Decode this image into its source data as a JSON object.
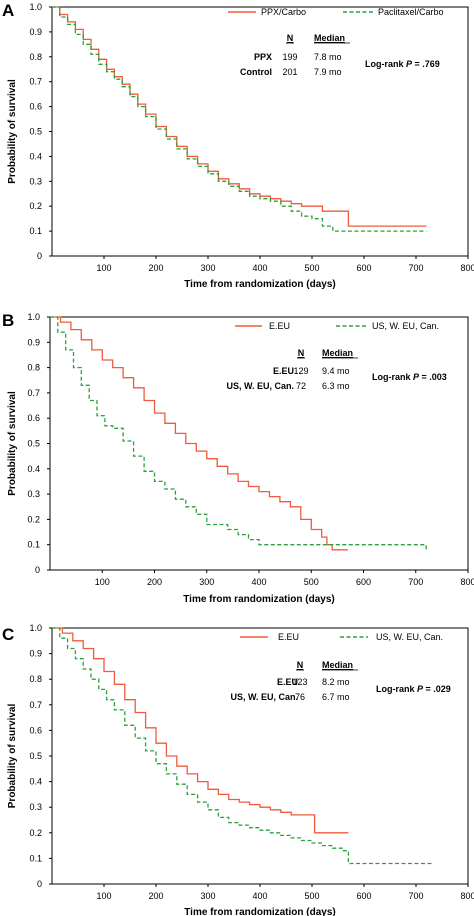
{
  "colors": {
    "orange": "#f15a3c",
    "green": "#2aa13a",
    "axis": "#000000"
  },
  "chart_data": [
    {
      "type": "line",
      "panel_label": "A",
      "xlabel": "Time from randomization (days)",
      "ylabel": "Probability of survival",
      "xlim": [
        0,
        800
      ],
      "ylim": [
        0,
        1.0
      ],
      "x_ticks": [
        "100",
        "200",
        "300",
        "400",
        "500",
        "600",
        "700",
        "800"
      ],
      "y_ticks": [
        "0",
        "0.1",
        "0.2",
        "0.3",
        "0.4",
        "0.5",
        "0.6",
        "0.7",
        "0.8",
        "0.9",
        "1.0"
      ],
      "annotation": "Log-rank P = .769",
      "table": {
        "header_n": "N",
        "header_median": "Median",
        "rows": [
          {
            "label": "PPX",
            "n": "199",
            "median": "7.8 mo"
          },
          {
            "label": "Control",
            "n": "201",
            "median": "7.9 mo"
          }
        ]
      },
      "series": [
        {
          "name": "PPX/Carbo",
          "style": "solid",
          "color": "#f15a3c",
          "x": [
            0,
            15,
            30,
            45,
            60,
            75,
            90,
            105,
            120,
            135,
            150,
            165,
            180,
            200,
            220,
            240,
            260,
            280,
            300,
            320,
            340,
            360,
            380,
            400,
            420,
            440,
            460,
            480,
            500,
            520,
            540,
            565,
            570,
            720
          ],
          "y": [
            1.0,
            0.97,
            0.94,
            0.91,
            0.87,
            0.83,
            0.79,
            0.75,
            0.72,
            0.69,
            0.65,
            0.61,
            0.57,
            0.52,
            0.48,
            0.44,
            0.4,
            0.37,
            0.34,
            0.31,
            0.29,
            0.27,
            0.25,
            0.24,
            0.23,
            0.22,
            0.21,
            0.2,
            0.2,
            0.18,
            0.18,
            0.18,
            0.12,
            0.12
          ]
        },
        {
          "name": "Paclitaxel/Carbo",
          "style": "dashed",
          "color": "#2aa13a",
          "x": [
            0,
            15,
            30,
            45,
            60,
            75,
            90,
            105,
            120,
            135,
            150,
            165,
            180,
            200,
            220,
            240,
            260,
            280,
            300,
            320,
            340,
            360,
            380,
            400,
            420,
            440,
            460,
            480,
            500,
            520,
            540,
            720
          ],
          "y": [
            1.0,
            0.96,
            0.93,
            0.89,
            0.85,
            0.81,
            0.77,
            0.74,
            0.71,
            0.68,
            0.64,
            0.6,
            0.56,
            0.51,
            0.47,
            0.43,
            0.39,
            0.36,
            0.33,
            0.3,
            0.28,
            0.26,
            0.24,
            0.23,
            0.22,
            0.2,
            0.18,
            0.16,
            0.15,
            0.12,
            0.1,
            0.1
          ]
        }
      ]
    },
    {
      "type": "line",
      "panel_label": "B",
      "xlabel": "Time from randomization (days)",
      "ylabel": "Probability of survival",
      "xlim": [
        0,
        800
      ],
      "ylim": [
        0,
        1.0
      ],
      "x_ticks": [
        "100",
        "200",
        "300",
        "400",
        "500",
        "600",
        "700",
        "800"
      ],
      "y_ticks": [
        "0",
        "0.1",
        "0.2",
        "0.3",
        "0.4",
        "0.5",
        "0.6",
        "0.7",
        "0.8",
        "0.9",
        "1.0"
      ],
      "annotation": "Log-rank P = .003",
      "table": {
        "header_n": "N",
        "header_median": "Median",
        "rows": [
          {
            "label": "E.EU",
            "n": "129",
            "median": "9.4 mo"
          },
          {
            "label": "US, W. EU, Can.",
            "n": "72",
            "median": "6.3 mo"
          }
        ]
      },
      "series": [
        {
          "name": "E.EU",
          "style": "solid",
          "color": "#f15a3c",
          "x": [
            0,
            20,
            40,
            60,
            80,
            100,
            120,
            140,
            160,
            180,
            200,
            220,
            240,
            260,
            280,
            300,
            320,
            340,
            360,
            380,
            400,
            420,
            440,
            460,
            480,
            500,
            510,
            520,
            530,
            540,
            560,
            570
          ],
          "y": [
            1.0,
            0.98,
            0.95,
            0.91,
            0.87,
            0.83,
            0.8,
            0.76,
            0.72,
            0.67,
            0.62,
            0.58,
            0.54,
            0.5,
            0.47,
            0.44,
            0.41,
            0.38,
            0.35,
            0.33,
            0.31,
            0.29,
            0.27,
            0.25,
            0.2,
            0.16,
            0.16,
            0.13,
            0.1,
            0.08,
            0.08,
            0.08
          ]
        },
        {
          "name": "US, W. EU, Can.",
          "style": "dashed",
          "color": "#2aa13a",
          "x": [
            0,
            15,
            30,
            45,
            60,
            75,
            90,
            105,
            120,
            140,
            160,
            180,
            200,
            220,
            240,
            260,
            280,
            300,
            320,
            340,
            360,
            380,
            400,
            420,
            720
          ],
          "y": [
            1.0,
            0.94,
            0.87,
            0.8,
            0.73,
            0.67,
            0.61,
            0.57,
            0.56,
            0.51,
            0.45,
            0.39,
            0.35,
            0.32,
            0.28,
            0.25,
            0.22,
            0.18,
            0.18,
            0.16,
            0.14,
            0.12,
            0.1,
            0.1,
            0.08
          ]
        }
      ]
    },
    {
      "type": "line",
      "panel_label": "C",
      "xlabel": "Time from randomization (days)",
      "ylabel": "Probability of survival",
      "xlim": [
        0,
        800
      ],
      "ylim": [
        0,
        1.0
      ],
      "x_ticks": [
        "100",
        "200",
        "300",
        "400",
        "500",
        "600",
        "700",
        "800"
      ],
      "y_ticks": [
        "0",
        "0.1",
        "0.2",
        "0.3",
        "0.4",
        "0.5",
        "0.6",
        "0.7",
        "0.8",
        "0.9",
        "1.0"
      ],
      "annotation": "Log-rank P = .029",
      "table": {
        "header_n": "N",
        "header_median": "Median",
        "rows": [
          {
            "label": "E.EU",
            "n": "123",
            "median": "8.2 mo"
          },
          {
            "label": "US, W. EU, Can.",
            "n": "76",
            "median": "6.7 mo"
          }
        ]
      },
      "series": [
        {
          "name": "E.EU",
          "style": "solid",
          "color": "#f15a3c",
          "x": [
            0,
            20,
            40,
            60,
            80,
            100,
            120,
            140,
            160,
            180,
            200,
            220,
            240,
            260,
            280,
            300,
            320,
            340,
            360,
            380,
            400,
            420,
            440,
            460,
            480,
            500,
            505,
            570
          ],
          "y": [
            1.0,
            0.98,
            0.95,
            0.92,
            0.88,
            0.83,
            0.78,
            0.72,
            0.67,
            0.61,
            0.55,
            0.5,
            0.46,
            0.43,
            0.4,
            0.37,
            0.35,
            0.33,
            0.32,
            0.31,
            0.3,
            0.29,
            0.28,
            0.27,
            0.27,
            0.27,
            0.2,
            0.2
          ]
        },
        {
          "name": "US, W. EU, Can.",
          "style": "dashed",
          "color": "#2aa13a",
          "x": [
            0,
            15,
            30,
            45,
            60,
            75,
            90,
            105,
            120,
            140,
            160,
            180,
            200,
            220,
            240,
            260,
            280,
            300,
            320,
            340,
            360,
            380,
            400,
            420,
            440,
            460,
            480,
            500,
            520,
            540,
            560,
            570,
            730
          ],
          "y": [
            1.0,
            0.96,
            0.92,
            0.88,
            0.84,
            0.8,
            0.76,
            0.72,
            0.68,
            0.62,
            0.57,
            0.52,
            0.47,
            0.43,
            0.39,
            0.35,
            0.32,
            0.29,
            0.26,
            0.24,
            0.23,
            0.22,
            0.21,
            0.2,
            0.19,
            0.18,
            0.17,
            0.16,
            0.15,
            0.14,
            0.13,
            0.08,
            0.08
          ]
        }
      ]
    }
  ]
}
